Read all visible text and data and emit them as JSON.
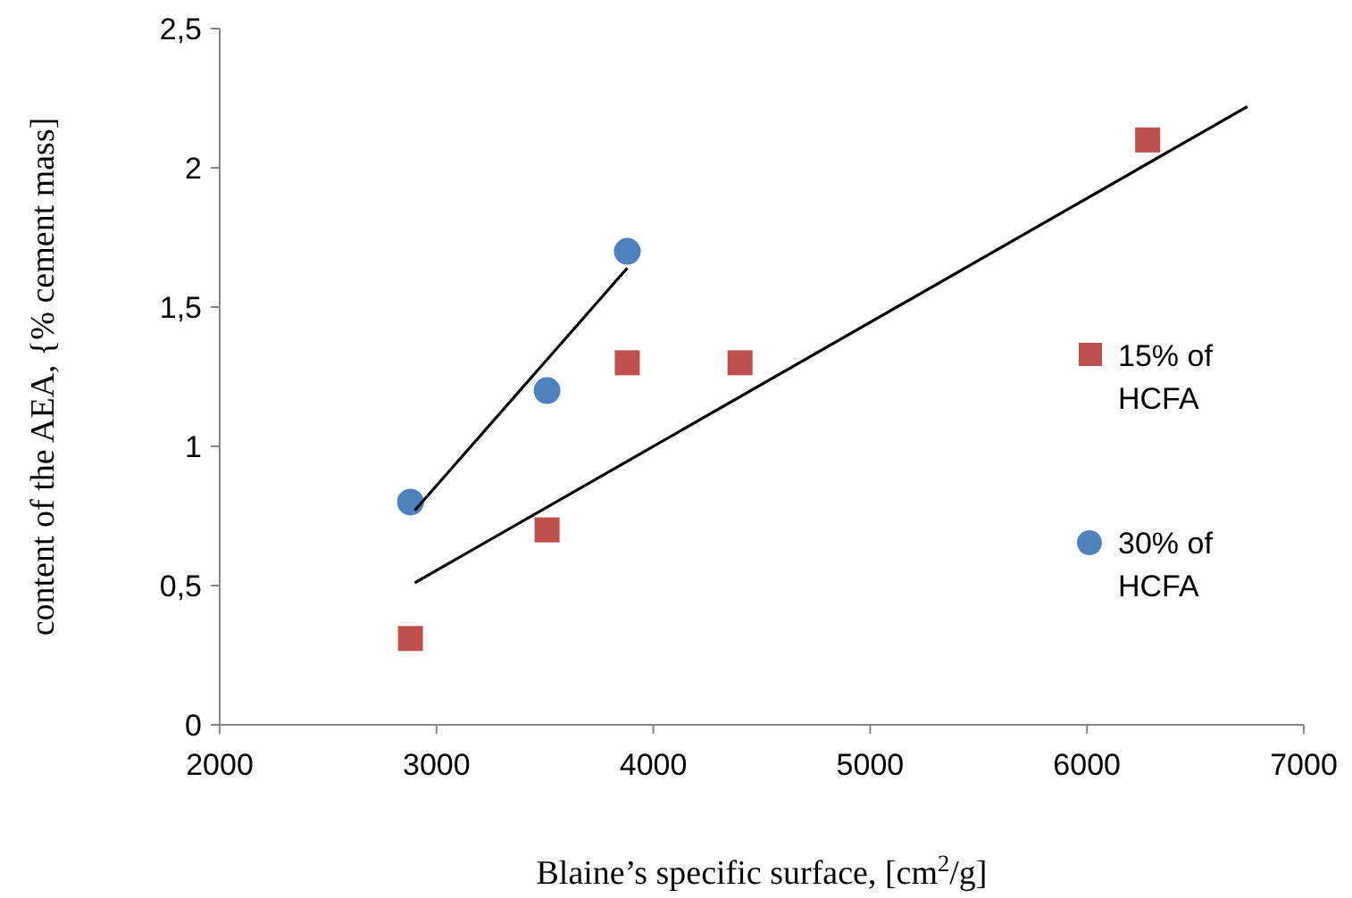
{
  "chart_data": {
    "type": "scatter",
    "xlabel": "Blaine’s specific surface, [cm$^{2}$/g]",
    "ylabel": "content of the AEA, {% cement mass]",
    "xlim": [
      2000,
      7000
    ],
    "xticks": [
      2000,
      3000,
      4000,
      5000,
      6000,
      7000
    ],
    "ylim": [
      0,
      2.5
    ],
    "yticks": [
      0,
      {
        "value": 0.5,
        "label": "0,5"
      },
      1,
      {
        "value": 1.5,
        "label": "1,5"
      },
      2,
      {
        "value": 2.5,
        "label": "2,5"
      }
    ],
    "grid": false,
    "legend": "right",
    "series": [
      {
        "name": "15% of HCFA",
        "color": "#c0504d",
        "marker": "square",
        "x": [
          2880,
          3510,
          3880,
          4400,
          6280
        ],
        "values": [
          0.31,
          0.7,
          1.3,
          1.3,
          2.1
        ]
      },
      {
        "name": "30% of HCFA",
        "color": "#4f81bd",
        "marker": "circle",
        "x": [
          2880,
          3510,
          3880
        ],
        "values": [
          0.8,
          1.2,
          1.7
        ]
      },
      {
        "type": "line",
        "color": "#000000",
        "marker": "none",
        "x": [
          2900,
          6740
        ],
        "values": [
          0.51,
          2.22
        ]
      },
      {
        "type": "line",
        "color": "#000000",
        "marker": "none",
        "x": [
          2900,
          3880
        ],
        "values": [
          0.77,
          1.64
        ]
      }
    ]
  }
}
